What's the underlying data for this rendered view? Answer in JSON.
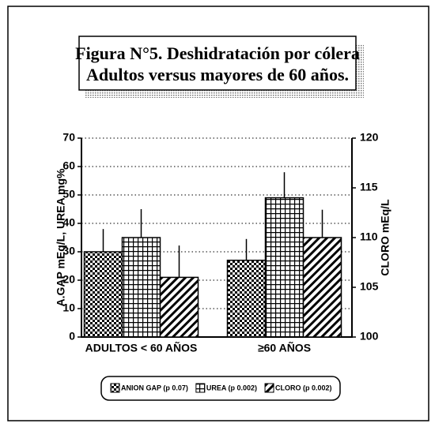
{
  "chart_data": {
    "type": "bar",
    "title": [
      "Figura N°5. Deshidratación por cólera",
      "Adultos versus mayores de 60 años."
    ],
    "categories": [
      "ADULTOS < 60 AÑOS",
      "≥60 AÑOS"
    ],
    "ylabel": "A.GAP mEq/L, UREA mg%",
    "y2label": "CLORO mEq/L",
    "ylim": [
      0,
      70
    ],
    "yticks": [
      0,
      10,
      20,
      30,
      40,
      50,
      60,
      70
    ],
    "y2lim": [
      100,
      120
    ],
    "y2ticks": [
      100,
      105,
      110,
      115,
      120
    ],
    "grid": true,
    "series": [
      {
        "name": "ANION GAP (p 0.07)",
        "color": "#000000",
        "pattern": "checker",
        "values": [
          30,
          27
        ],
        "errors": [
          8,
          7.5
        ]
      },
      {
        "name": "UREA (p 0.002)",
        "color": "#000000",
        "pattern": "grid",
        "values": [
          35,
          49
        ],
        "errors": [
          10,
          9
        ]
      },
      {
        "name": "CLORO (p 0.002)",
        "color": "#000000",
        "pattern": "diagonal",
        "axis": "y2",
        "values": [
          106,
          110
        ],
        "errors": [
          3.2,
          2.8
        ]
      }
    ]
  }
}
